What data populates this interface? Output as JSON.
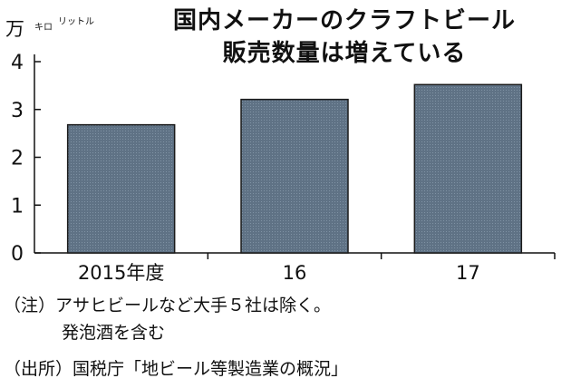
{
  "title_line1": "国内メーカーのクラフトビール",
  "title_line2": "販売数量は増えている",
  "unit": {
    "main": "万",
    "kilo": "キロ",
    "litre": "リットル"
  },
  "notes": {
    "note_line1": "（注）アサヒビールなど大手５社は除く。",
    "note_line2": "発泡酒を含む",
    "source": "（出所）国税庁「地ビール等製造業の概況」"
  },
  "colors": {
    "bar_fill": "#5f7285",
    "bar_stroke": "#1a1a1a",
    "axis": "#111111"
  },
  "chart_data": {
    "type": "bar",
    "title": "国内メーカーのクラフトビール 販売数量は増えている",
    "ylabel": "万キロリットル",
    "xlabel": "",
    "categories": [
      "2015年度",
      "16",
      "17"
    ],
    "values": [
      2.68,
      3.21,
      3.52
    ],
    "ylim": [
      0,
      4
    ],
    "yticks": [
      0,
      1,
      2,
      3,
      4
    ],
    "grid": false
  }
}
